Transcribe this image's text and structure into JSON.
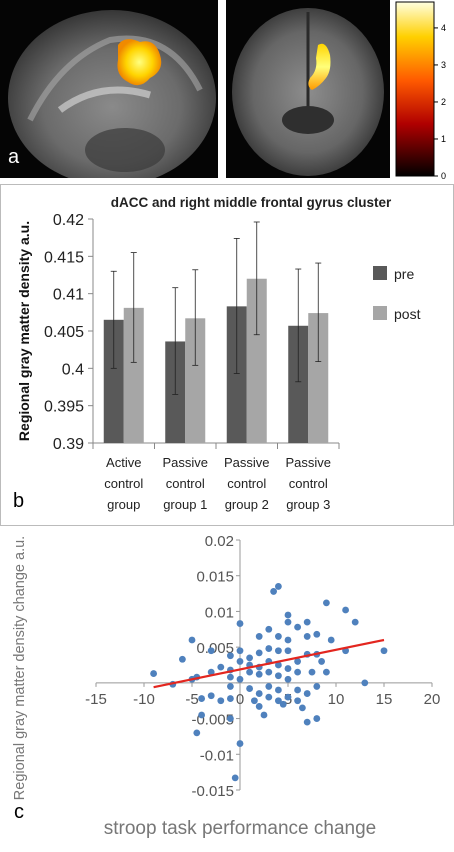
{
  "panel_a": {
    "label": "a",
    "colorbar": {
      "ticks": [
        "4",
        "3",
        "2",
        "1",
        "0"
      ],
      "range": [
        0,
        4.7
      ]
    }
  },
  "chart_data": [
    {
      "type": "bar",
      "panel_label": "b",
      "title": "dACC and right middle frontal gyrus cluster",
      "xlabel": "",
      "ylabel": "Regional gray matter density a.u.",
      "ylim": [
        0.39,
        0.42
      ],
      "yticks": [
        "0.39",
        "0.395",
        "0.4",
        "0.405",
        "0.41",
        "0.415",
        "0.42"
      ],
      "categories": [
        [
          "Active",
          "control",
          "group"
        ],
        [
          "Passive",
          "control",
          "group 1"
        ],
        [
          "Passive",
          "control",
          "group 2"
        ],
        [
          "Passive",
          "control",
          "group 3"
        ]
      ],
      "series": [
        {
          "name": "pre",
          "color": "#595959",
          "values": [
            0.4065,
            0.4036,
            0.4083,
            0.4057
          ],
          "error_low": [
            0.4,
            0.3965,
            0.3993,
            0.3982
          ],
          "error_high": [
            0.413,
            0.4108,
            0.4174,
            0.4133
          ]
        },
        {
          "name": "post",
          "color": "#a6a6a6",
          "values": [
            0.4081,
            0.4067,
            0.412,
            0.4074
          ],
          "error_low": [
            0.4008,
            0.4004,
            0.4045,
            0.4009
          ],
          "error_high": [
            0.4155,
            0.4132,
            0.4196,
            0.4141
          ]
        }
      ],
      "legend_position": "right",
      "grid": false
    },
    {
      "type": "scatter",
      "panel_label": "c",
      "xlabel": "stroop task performance change",
      "ylabel": "Regional gray matter density change  a.u.",
      "xlim": [
        -15,
        20
      ],
      "ylim": [
        -0.015,
        0.02
      ],
      "xticks": [
        "-15",
        "-10",
        "-5",
        "0",
        "5",
        "10",
        "15",
        "20"
      ],
      "yticks": [
        "0.02",
        "0.015",
        "0.01",
        "0.005",
        "0",
        "-0.005",
        "-0.01",
        "-0.015"
      ],
      "point_color": "#4f81bd",
      "trendline": {
        "color": "#e3261f",
        "x": [
          -9,
          15
        ],
        "y": [
          -0.0006,
          0.006
        ]
      },
      "points": [
        [
          -9,
          0.0013
        ],
        [
          -7,
          -0.0002
        ],
        [
          -6,
          0.0033
        ],
        [
          -5,
          0.006
        ],
        [
          -5,
          0.0005
        ],
        [
          -4.5,
          0.0008
        ],
        [
          -4,
          -0.0022
        ],
        [
          -4,
          -0.0045
        ],
        [
          -4.5,
          -0.007
        ],
        [
          -3,
          0.0045
        ],
        [
          -3,
          0.0015
        ],
        [
          -3,
          -0.0018
        ],
        [
          -2,
          0.0022
        ],
        [
          -2,
          -0.0025
        ],
        [
          -1,
          0.0038
        ],
        [
          -1,
          0.0018
        ],
        [
          -1,
          0.0008
        ],
        [
          -1,
          -0.0005
        ],
        [
          -1,
          -0.0022
        ],
        [
          -1,
          -0.005
        ],
        [
          -0.5,
          -0.0133
        ],
        [
          0,
          0.0083
        ],
        [
          0,
          0.0045
        ],
        [
          0,
          0.003
        ],
        [
          0,
          0.0005
        ],
        [
          0,
          -0.0085
        ],
        [
          1,
          0.0035
        ],
        [
          1,
          0.0025
        ],
        [
          1,
          0.0015
        ],
        [
          1,
          -0.0008
        ],
        [
          1.5,
          -0.0025
        ],
        [
          2,
          0.0065
        ],
        [
          2,
          0.0042
        ],
        [
          2,
          0.0022
        ],
        [
          2,
          0.0012
        ],
        [
          2,
          -0.0015
        ],
        [
          2,
          -0.0033
        ],
        [
          2.5,
          -0.0045
        ],
        [
          3,
          0.0075
        ],
        [
          3,
          0.0048
        ],
        [
          3,
          0.003
        ],
        [
          3,
          0.0015
        ],
        [
          3,
          -0.0005
        ],
        [
          3,
          -0.002
        ],
        [
          3.5,
          0.0128
        ],
        [
          4,
          0.0135
        ],
        [
          4,
          0.0065
        ],
        [
          4,
          0.0045
        ],
        [
          4,
          0.0025
        ],
        [
          4,
          0.001
        ],
        [
          4,
          -0.001
        ],
        [
          4,
          -0.0025
        ],
        [
          4.5,
          -0.003
        ],
        [
          5,
          0.0095
        ],
        [
          5,
          0.0085
        ],
        [
          5,
          0.006
        ],
        [
          5,
          0.0045
        ],
        [
          5,
          0.002
        ],
        [
          5,
          0.0005
        ],
        [
          5,
          -0.002
        ],
        [
          6,
          0.0078
        ],
        [
          6,
          0.003
        ],
        [
          6,
          0.0015
        ],
        [
          6,
          -0.001
        ],
        [
          6,
          -0.0025
        ],
        [
          6.5,
          -0.0035
        ],
        [
          7,
          0.0085
        ],
        [
          7,
          0.0065
        ],
        [
          7,
          0.004
        ],
        [
          7,
          -0.0015
        ],
        [
          7,
          -0.0055
        ],
        [
          7.5,
          0.0015
        ],
        [
          8,
          0.0068
        ],
        [
          8,
          0.004
        ],
        [
          8,
          -0.0005
        ],
        [
          8,
          -0.005
        ],
        [
          8.5,
          0.003
        ],
        [
          9,
          0.0112
        ],
        [
          9,
          0.0015
        ],
        [
          9.5,
          0.006
        ],
        [
          11,
          0.0102
        ],
        [
          11,
          0.0045
        ],
        [
          12,
          0.0085
        ],
        [
          13,
          0
        ],
        [
          15,
          0.0045
        ]
      ]
    }
  ]
}
